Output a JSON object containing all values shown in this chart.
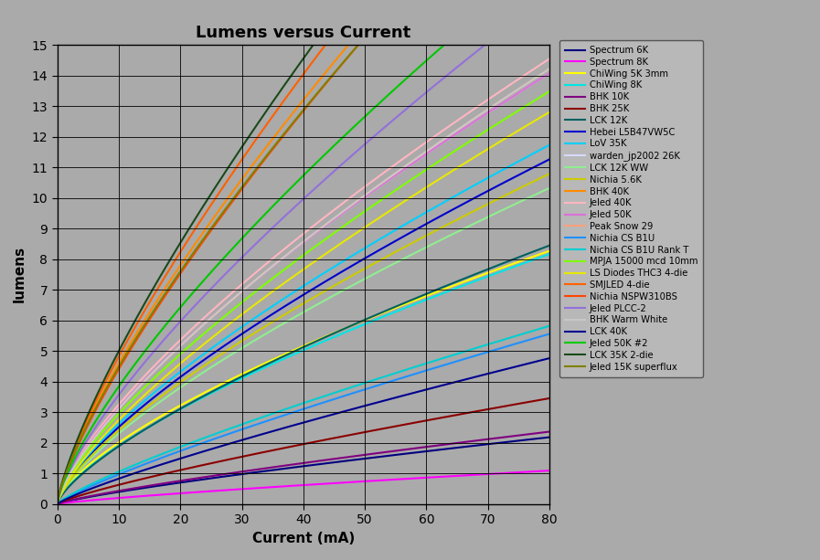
{
  "title": "Lumens versus Current",
  "xlabel": "Current (mA)",
  "ylabel": "lumens",
  "xlim": [
    0,
    80
  ],
  "ylim": [
    0,
    15
  ],
  "xticks": [
    0,
    10,
    20,
    30,
    40,
    50,
    60,
    70,
    80
  ],
  "yticks": [
    0,
    1,
    2,
    3,
    4,
    5,
    6,
    7,
    8,
    9,
    10,
    11,
    12,
    13,
    14,
    15
  ],
  "bg_color": "#aaaaaa",
  "grid_color": "#000000",
  "series": [
    {
      "label": "Spectrum 6K",
      "color": "#000080",
      "a": 0.06,
      "b": 0.82
    },
    {
      "label": "Spectrum 8K",
      "color": "#ff00ff",
      "a": 0.03,
      "b": 0.82
    },
    {
      "label": "ChiWing 5K 3mm",
      "color": "#ffff00",
      "a": 0.42,
      "b": 0.68
    },
    {
      "label": "ChiWing 8K",
      "color": "#00e5e5",
      "a": 0.38,
      "b": 0.7
    },
    {
      "label": "BHK 10K",
      "color": "#800080",
      "a": 0.065,
      "b": 0.82
    },
    {
      "label": "BHK 25K",
      "color": "#8b0000",
      "a": 0.095,
      "b": 0.82
    },
    {
      "label": "LCK 12K",
      "color": "#006060",
      "a": 0.36,
      "b": 0.72
    },
    {
      "label": "Hebei L5B47VW5C",
      "color": "#0000cd",
      "a": 0.48,
      "b": 0.72
    },
    {
      "label": "LoV 35K",
      "color": "#00cfff",
      "a": 0.5,
      "b": 0.72
    },
    {
      "label": "warden_jp2002 26K",
      "color": "#d8d8ff",
      "a": 0.6,
      "b": 0.72
    },
    {
      "label": "LCK 12K WW",
      "color": "#90ee90",
      "a": 0.44,
      "b": 0.72
    },
    {
      "label": "Nichia 5.6K",
      "color": "#cccc00",
      "a": 0.46,
      "b": 0.72
    },
    {
      "label": "BHK 40K",
      "color": "#ff8c00",
      "a": 0.8,
      "b": 0.76
    },
    {
      "label": "Jeled 40K",
      "color": "#ffb6c1",
      "a": 0.62,
      "b": 0.72
    },
    {
      "label": "Jeled 50K",
      "color": "#da70d6",
      "a": 0.6,
      "b": 0.72
    },
    {
      "label": "Peak Snow 29",
      "color": "#ffa07a",
      "a": 0.58,
      "b": 0.73
    },
    {
      "label": "Nichia CS B1U",
      "color": "#1e90ff",
      "a": 0.14,
      "b": 0.84
    },
    {
      "label": "Nichia CS B1U Rank T",
      "color": "#00ced1",
      "a": 0.16,
      "b": 0.82
    },
    {
      "label": "MPJA 15000 mcd 10mm",
      "color": "#7fff00",
      "a": 0.55,
      "b": 0.73
    },
    {
      "label": "LS Diodes THC3 4-die",
      "color": "#e8e800",
      "a": 0.5,
      "b": 0.74
    },
    {
      "label": "SMJLED 4-die",
      "color": "#ff6000",
      "a": 0.82,
      "b": 0.77
    },
    {
      "label": "Nichia NSPW310BS",
      "color": "#ff4500",
      "a": 0.75,
      "b": 0.77
    },
    {
      "label": "Jeled PLCC-2",
      "color": "#9370db",
      "a": 0.65,
      "b": 0.74
    },
    {
      "label": "BHK Warm White",
      "color": "#c8c8c8",
      "a": 0.58,
      "b": 0.73
    },
    {
      "label": "LCK 40K",
      "color": "#000090",
      "a": 0.12,
      "b": 0.84
    },
    {
      "label": "Jeled 50K #2",
      "color": "#00c800",
      "a": 0.7,
      "b": 0.74
    },
    {
      "label": "LCK 35K 2-die",
      "color": "#1a4a1a",
      "a": 0.85,
      "b": 0.77
    },
    {
      "label": "Jeled 15K superflux",
      "color": "#808000",
      "a": 0.78,
      "b": 0.76
    }
  ]
}
